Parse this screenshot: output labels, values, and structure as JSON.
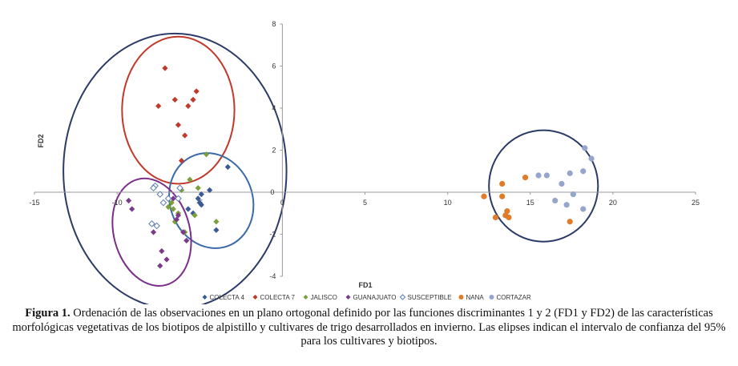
{
  "chart_data": {
    "type": "scatter",
    "xlabel": "FD1",
    "ylabel": "FD2",
    "xlim": [
      -15,
      25
    ],
    "ylim": [
      -4,
      8
    ],
    "x_ticks": [
      -15,
      -10,
      -5,
      0,
      5,
      10,
      15,
      20,
      25
    ],
    "y_ticks": [
      -4,
      -2,
      0,
      2,
      4,
      6,
      8
    ],
    "grid": false,
    "legend_position": "bottom",
    "series": [
      {
        "name": "COLECTA 4",
        "color": "#3a5a96",
        "marker": "diamond",
        "points": [
          [
            -3.3,
            1.2
          ],
          [
            -4.4,
            0.1
          ],
          [
            -4.9,
            -0.1
          ],
          [
            -5.1,
            -0.3
          ],
          [
            -5.0,
            -0.5
          ],
          [
            -4.9,
            -0.6
          ],
          [
            -5.7,
            -0.8
          ],
          [
            -5.4,
            -1.0
          ],
          [
            -4.0,
            -1.8
          ]
        ]
      },
      {
        "name": "COLECTA 7",
        "color": "#c0392b",
        "marker": "diamond",
        "points": [
          [
            -7.1,
            5.9
          ],
          [
            -6.5,
            4.4
          ],
          [
            -7.5,
            4.1
          ],
          [
            -5.2,
            4.8
          ],
          [
            -5.4,
            4.4
          ],
          [
            -5.7,
            4.1
          ],
          [
            -6.3,
            3.2
          ],
          [
            -5.9,
            2.7
          ],
          [
            -6.1,
            1.5
          ]
        ]
      },
      {
        "name": "JALISCO",
        "color": "#7ba03a",
        "marker": "diamond",
        "points": [
          [
            -4.6,
            1.8
          ],
          [
            -5.6,
            0.6
          ],
          [
            -5.1,
            0.2
          ],
          [
            -6.1,
            0.1
          ],
          [
            -6.7,
            -0.5
          ],
          [
            -6.9,
            -0.7
          ],
          [
            -6.6,
            -0.8
          ],
          [
            -6.3,
            -1.0
          ],
          [
            -5.3,
            -1.1
          ],
          [
            -6.5,
            -1.4
          ],
          [
            -4.0,
            -1.4
          ],
          [
            -5.9,
            -1.9
          ]
        ]
      },
      {
        "name": "GUANAJUATO",
        "color": "#7b3b8a",
        "marker": "diamond",
        "points": [
          [
            -9.3,
            -0.4
          ],
          [
            -9.1,
            -0.8
          ],
          [
            -6.6,
            -0.3
          ],
          [
            -6.3,
            -1.1
          ],
          [
            -6.4,
            -1.3
          ],
          [
            -7.9,
            -1.5
          ],
          [
            -7.8,
            -1.9
          ],
          [
            -6.0,
            -1.9
          ],
          [
            -5.8,
            -2.3
          ],
          [
            -7.3,
            -2.8
          ],
          [
            -7.0,
            -3.2
          ],
          [
            -7.4,
            -3.5
          ]
        ]
      },
      {
        "name": "SUSCEPTIBLE",
        "color": "#5b7bb5",
        "marker": "open-diamond",
        "points": [
          [
            -7.7,
            0.3
          ],
          [
            -7.8,
            0.2
          ],
          [
            -7.4,
            -0.1
          ],
          [
            -6.9,
            -0.3
          ],
          [
            -7.2,
            -0.5
          ],
          [
            -6.2,
            0.2
          ],
          [
            -6.3,
            -0.3
          ],
          [
            -7.9,
            -1.5
          ],
          [
            -7.6,
            -1.6
          ]
        ]
      },
      {
        "name": "NANA",
        "color": "#e07b2a",
        "marker": "circle",
        "points": [
          [
            12.2,
            -0.2
          ],
          [
            13.3,
            0.4
          ],
          [
            13.3,
            -0.2
          ],
          [
            14.7,
            0.7
          ],
          [
            13.6,
            -0.9
          ],
          [
            13.5,
            -1.1
          ],
          [
            13.7,
            -1.2
          ],
          [
            12.9,
            -1.2
          ],
          [
            17.4,
            -1.4
          ]
        ]
      },
      {
        "name": "CORTAZAR",
        "color": "#95a5cc",
        "marker": "circle",
        "points": [
          [
            18.3,
            2.1
          ],
          [
            18.7,
            1.6
          ],
          [
            16.0,
            0.8
          ],
          [
            17.4,
            0.9
          ],
          [
            18.2,
            1.0
          ],
          [
            16.9,
            0.4
          ],
          [
            15.5,
            0.8
          ],
          [
            17.6,
            -0.1
          ],
          [
            16.5,
            -0.4
          ],
          [
            17.2,
            -0.6
          ],
          [
            18.2,
            -0.8
          ]
        ]
      }
    ],
    "ellipses": [
      {
        "group": "all biotypes",
        "color": "#2b3a67",
        "cx": -6.5,
        "cy": 1.0,
        "rx": 6.75,
        "ry": 6.55,
        "angle": 0
      },
      {
        "group": "COLECTA 7",
        "color": "#c0392b",
        "cx": -6.3,
        "cy": 3.9,
        "rx": 3.4,
        "ry": 3.5,
        "angle": 0
      },
      {
        "group": "COLECTA 4",
        "color": "#3a6aa8",
        "cx": -4.3,
        "cy": -0.4,
        "rx": 2.5,
        "ry": 2.3,
        "angle": -20
      },
      {
        "group": "GUANAJUATO",
        "color": "#7b2d8a",
        "cx": -7.9,
        "cy": -1.9,
        "rx": 2.3,
        "ry": 2.6,
        "angle": -15
      },
      {
        "group": "NANA + CORTAZAR",
        "color": "#2b3a67",
        "cx": 15.8,
        "cy": 0.3,
        "rx": 3.3,
        "ry": 2.65,
        "angle": 0
      }
    ]
  },
  "caption": {
    "label": "Figura 1.",
    "text": "Ordenación de las observaciones en un plano ortogonal definido por las funciones discriminantes 1 y 2 (FD1 y FD2) de las características morfológicas vegetativas de los biotipos de alpistillo y cultivares de trigo desarrollados en invierno. Las elipses indican el intervalo de confianza del 95% para los cultivares y biotipos."
  }
}
